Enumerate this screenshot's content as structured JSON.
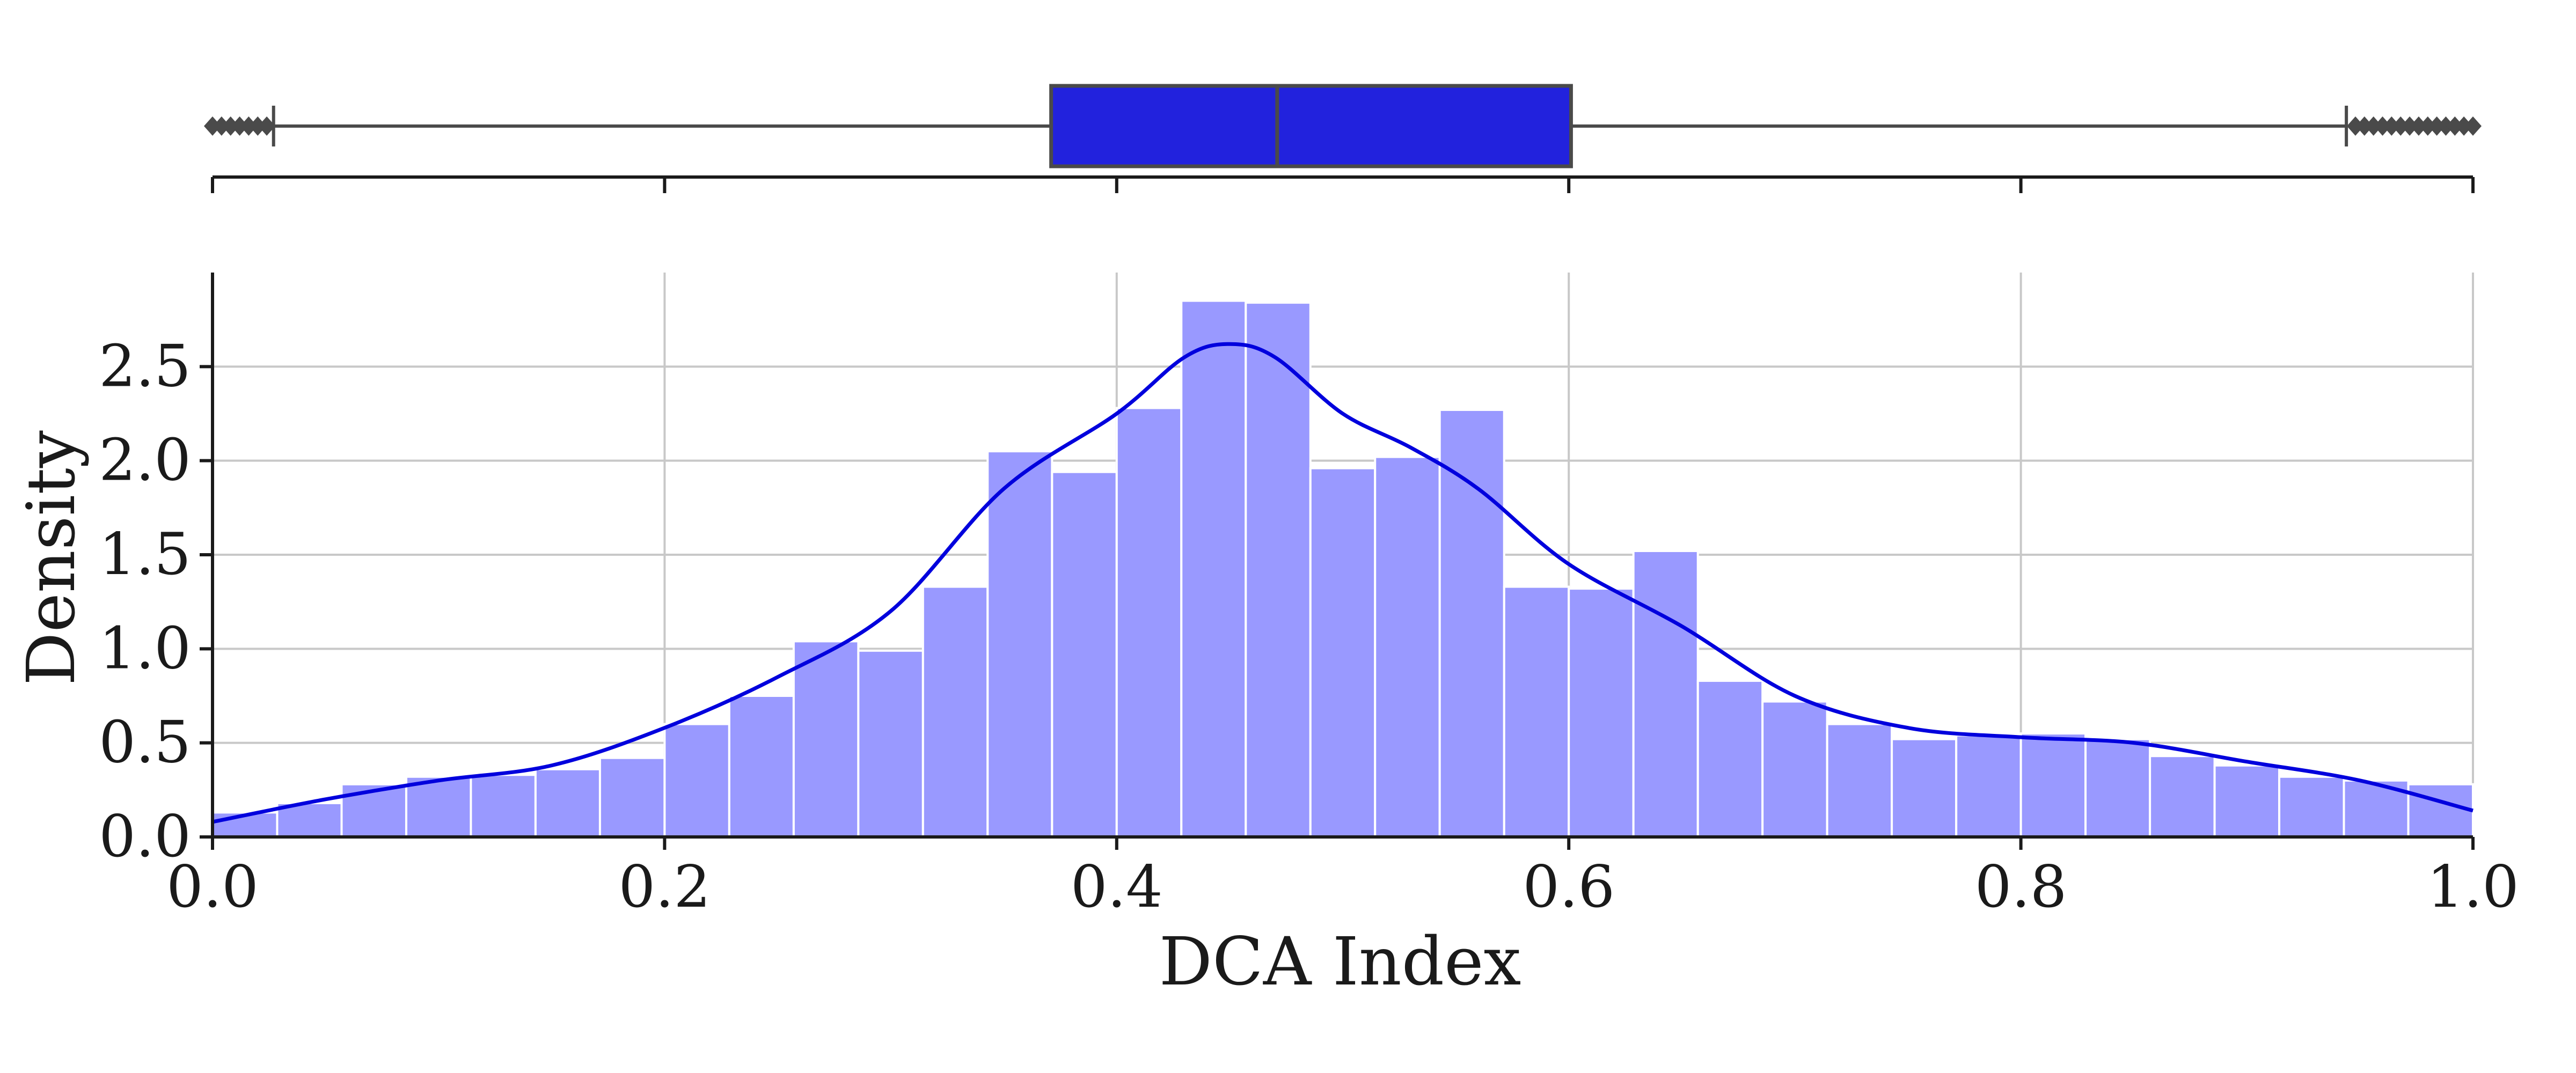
{
  "chart_data": [
    {
      "type": "box",
      "orientation": "horizontal",
      "stats": {
        "whisker_low": 0.027,
        "q1": 0.371,
        "median": 0.471,
        "q3": 0.601,
        "whisker_high": 0.944
      },
      "outliers_low": [
        0.0,
        0.004,
        0.008,
        0.012,
        0.016,
        0.02,
        0.024
      ],
      "outliers_high": [
        0.948,
        0.952,
        0.956,
        0.96,
        0.964,
        0.968,
        0.972,
        0.976,
        0.98,
        0.984,
        0.988,
        0.992,
        0.996,
        1.0
      ],
      "xlim": [
        0.0,
        1.0
      ],
      "color": "#2222dd",
      "edge_color": "#4a4a4a"
    },
    {
      "type": "bar",
      "subtype": "histogram",
      "xlabel": "DCA Index",
      "ylabel": "Density",
      "xlim": [
        0.0,
        1.0
      ],
      "ylim": [
        0.0,
        3.0
      ],
      "xticks": [
        "0.0",
        "0.2",
        "0.4",
        "0.6",
        "0.8",
        "1.0"
      ],
      "yticks": [
        "0.0",
        "0.5",
        "1.0",
        "1.5",
        "2.0",
        "2.5"
      ],
      "grid": true,
      "bar_color": "#9999ff",
      "bin_edges": [
        0.0,
        0.0286,
        0.0571,
        0.0857,
        0.1143,
        0.1429,
        0.1714,
        0.2,
        0.2286,
        0.2571,
        0.2857,
        0.3143,
        0.3429,
        0.3714,
        0.4,
        0.4286,
        0.4571,
        0.4857,
        0.5143,
        0.5429,
        0.5714,
        0.6,
        0.6286,
        0.6571,
        0.6857,
        0.7143,
        0.7429,
        0.7714,
        0.8,
        0.8286,
        0.8571,
        0.8857,
        0.9143,
        0.9429,
        0.9714,
        1.0
      ],
      "values": [
        0.13,
        0.18,
        0.28,
        0.32,
        0.33,
        0.36,
        0.42,
        0.6,
        0.75,
        1.04,
        0.99,
        1.33,
        2.05,
        1.94,
        2.28,
        2.85,
        2.84,
        1.96,
        2.02,
        2.27,
        1.33,
        1.32,
        1.52,
        0.83,
        0.72,
        0.6,
        0.52,
        0.54,
        0.55,
        0.52,
        0.43,
        0.38,
        0.32,
        0.3,
        0.28
      ],
      "kde": {
        "color": "#0000dd",
        "x": [
          0.0,
          0.05,
          0.1,
          0.15,
          0.2,
          0.25,
          0.3,
          0.35,
          0.4,
          0.43,
          0.45,
          0.47,
          0.5,
          0.53,
          0.56,
          0.6,
          0.65,
          0.7,
          0.75,
          0.8,
          0.85,
          0.9,
          0.95,
          1.0
        ],
        "y": [
          0.08,
          0.2,
          0.3,
          0.38,
          0.58,
          0.85,
          1.2,
          1.85,
          2.25,
          2.55,
          2.62,
          2.55,
          2.25,
          2.07,
          1.85,
          1.45,
          1.12,
          0.75,
          0.58,
          0.53,
          0.5,
          0.4,
          0.3,
          0.14
        ]
      }
    }
  ]
}
